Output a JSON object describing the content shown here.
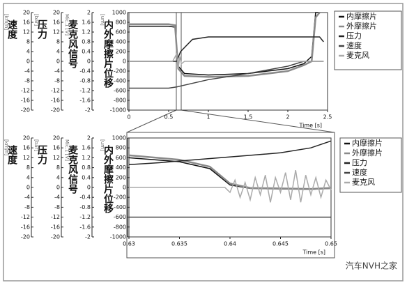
{
  "chart_data": [
    {
      "type": "line",
      "xlabel": "Time [s]",
      "xlim": [
        0,
        2.5
      ],
      "xticks": [
        0,
        0.5,
        1,
        1.5,
        2,
        2.5
      ],
      "ylabel": "内外摩擦片位移",
      "yunit": "[um]",
      "ylim": [
        -1000,
        1000
      ],
      "yticks": [
        1000,
        800,
        600,
        400,
        200,
        0,
        -200,
        -400,
        -600,
        -800,
        -1000
      ],
      "y2label": "麦克风信号",
      "y2unit": "Mic.1 [V]",
      "y2lim": [
        -2,
        2
      ],
      "y2ticks": [
        2,
        1.6,
        1.2,
        0.8,
        0.4,
        0,
        -0.4,
        -0.8,
        -1.2,
        -1.6,
        -2
      ],
      "y3label": "压力",
      "y3unit": "[bar]",
      "y3lim": [
        -20,
        20
      ],
      "y3ticks": [
        20,
        16,
        12,
        8,
        4,
        0,
        -4,
        -8,
        -12,
        -16,
        -20
      ],
      "y4label": "速度",
      "y4unit": "[km/h]",
      "y4lim": [
        -20,
        20
      ],
      "y4ticks": [
        20,
        16,
        12,
        8,
        4,
        0,
        -4,
        -8,
        -12,
        -16,
        -20
      ],
      "series": [
        {
          "name": "内摩擦片",
          "color": "#111111",
          "axis": "y",
          "x": [
            0,
            0.5,
            0.58,
            0.62,
            0.7,
            1.0,
            1.5,
            2.0,
            2.2,
            2.3,
            2.35,
            2.4
          ],
          "values": [
            720,
            720,
            700,
            -100,
            -250,
            -280,
            -250,
            -150,
            -50,
            100,
            1000,
            1000
          ]
        },
        {
          "name": "外摩擦片",
          "color": "#8a8a8a",
          "axis": "y",
          "x": [
            0,
            0.5,
            0.58,
            0.62,
            0.7,
            1.0,
            1.5,
            2.0,
            2.2,
            2.3,
            2.35,
            2.4
          ],
          "values": [
            760,
            760,
            740,
            -150,
            -300,
            -320,
            -300,
            -200,
            -80,
            0,
            900,
            1000
          ]
        },
        {
          "name": "压力",
          "color": "#222222",
          "axis": "y3",
          "x": [
            0,
            0.5,
            0.6,
            0.65,
            0.8,
            1.0,
            1.5,
            2.0,
            2.4,
            2.45
          ],
          "values": [
            0,
            0,
            0,
            4,
            9,
            10,
            10,
            10,
            10,
            8
          ]
        },
        {
          "name": "速度",
          "color": "#444444",
          "axis": "y4",
          "x": [
            0,
            0.5,
            0.6,
            1.0,
            1.5,
            2.0,
            2.2,
            2.45
          ],
          "values": [
            -11,
            -11,
            -10.5,
            -7.5,
            -5,
            -2,
            0,
            0
          ]
        },
        {
          "name": "麦克风",
          "color": "#aaaaaa",
          "axis": "y2",
          "x": [
            0,
            0.55,
            0.6,
            0.62,
            0.64,
            0.66,
            0.7,
            1.0,
            2.0,
            2.45
          ],
          "values": [
            0,
            0,
            0.3,
            -0.3,
            0.2,
            -0.1,
            0,
            0,
            0,
            0
          ]
        }
      ]
    },
    {
      "type": "line",
      "xlabel": "Time [s]",
      "xlim": [
        0.63,
        0.65
      ],
      "xticks": [
        0.63,
        0.635,
        0.64,
        0.645,
        0.65
      ],
      "ylabel": "内外摩擦片位移",
      "yunit": "[um]",
      "ylim": [
        -1000,
        1000
      ],
      "yticks": [
        1000,
        800,
        600,
        400,
        200,
        0,
        -200,
        -400,
        -600,
        -800,
        -1000
      ],
      "y2label": "麦克风信号",
      "y2unit": "Mic.1 [V]",
      "y2lim": [
        -2,
        2
      ],
      "y2ticks": [
        2,
        1.6,
        1.2,
        0.8,
        0.4,
        0,
        -0.4,
        -0.8,
        -1.2,
        -1.6,
        -2
      ],
      "y3label": "压力",
      "y3unit": "[bar]",
      "y3lim": [
        -20,
        20
      ],
      "y3ticks": [
        20,
        16,
        12,
        8,
        4,
        0,
        -4,
        -8,
        -12,
        -16,
        -20
      ],
      "y4label": "速度",
      "y4unit": "[km/h]",
      "y4lim": [
        -20,
        20
      ],
      "y4ticks": [
        20,
        16,
        12,
        8,
        4,
        0,
        -4,
        -8,
        -12,
        -16,
        -20
      ],
      "series": [
        {
          "name": "内摩擦片",
          "color": "#111111",
          "axis": "y",
          "x": [
            0.63,
            0.635,
            0.638,
            0.64,
            0.642,
            0.645,
            0.648,
            0.65
          ],
          "values": [
            600,
            520,
            380,
            50,
            -20,
            -30,
            -40,
            -20
          ]
        },
        {
          "name": "外摩擦片",
          "color": "#8a8a8a",
          "axis": "y",
          "x": [
            0.63,
            0.635,
            0.638,
            0.64,
            0.642,
            0.645,
            0.648,
            0.65
          ],
          "values": [
            650,
            560,
            420,
            80,
            -10,
            -20,
            -30,
            -10
          ]
        },
        {
          "name": "压力",
          "color": "#222222",
          "axis": "y3",
          "x": [
            0.63,
            0.633,
            0.636,
            0.639,
            0.642,
            0.645,
            0.648,
            0.65
          ],
          "values": [
            9.2,
            10,
            11,
            12,
            13,
            14,
            16,
            18.8
          ]
        },
        {
          "name": "速度",
          "color": "#444444",
          "axis": "y4",
          "x": [
            0.63,
            0.65
          ],
          "values": [
            -12,
            -12
          ]
        },
        {
          "name": "麦克风",
          "color": "#aaaaaa",
          "axis": "y2",
          "x": [
            0.63,
            0.635,
            0.6395,
            0.64,
            0.6405,
            0.641,
            0.6415,
            0.642,
            0.6425,
            0.643,
            0.6435,
            0.644,
            0.6445,
            0.645,
            0.6455,
            0.646,
            0.6465,
            0.647,
            0.6475,
            0.648,
            0.6485,
            0.649,
            0.6495,
            0.65
          ],
          "values": [
            0,
            0,
            0,
            -0.2,
            0.3,
            -0.4,
            0.2,
            -0.5,
            0.4,
            -0.3,
            0.5,
            -0.6,
            0.4,
            -0.2,
            0.6,
            -0.5,
            0.7,
            -0.6,
            0.5,
            -0.3,
            0.4,
            -0.4,
            0.3,
            -0.1
          ]
        }
      ]
    }
  ],
  "watermark": "汽车NVH之家"
}
